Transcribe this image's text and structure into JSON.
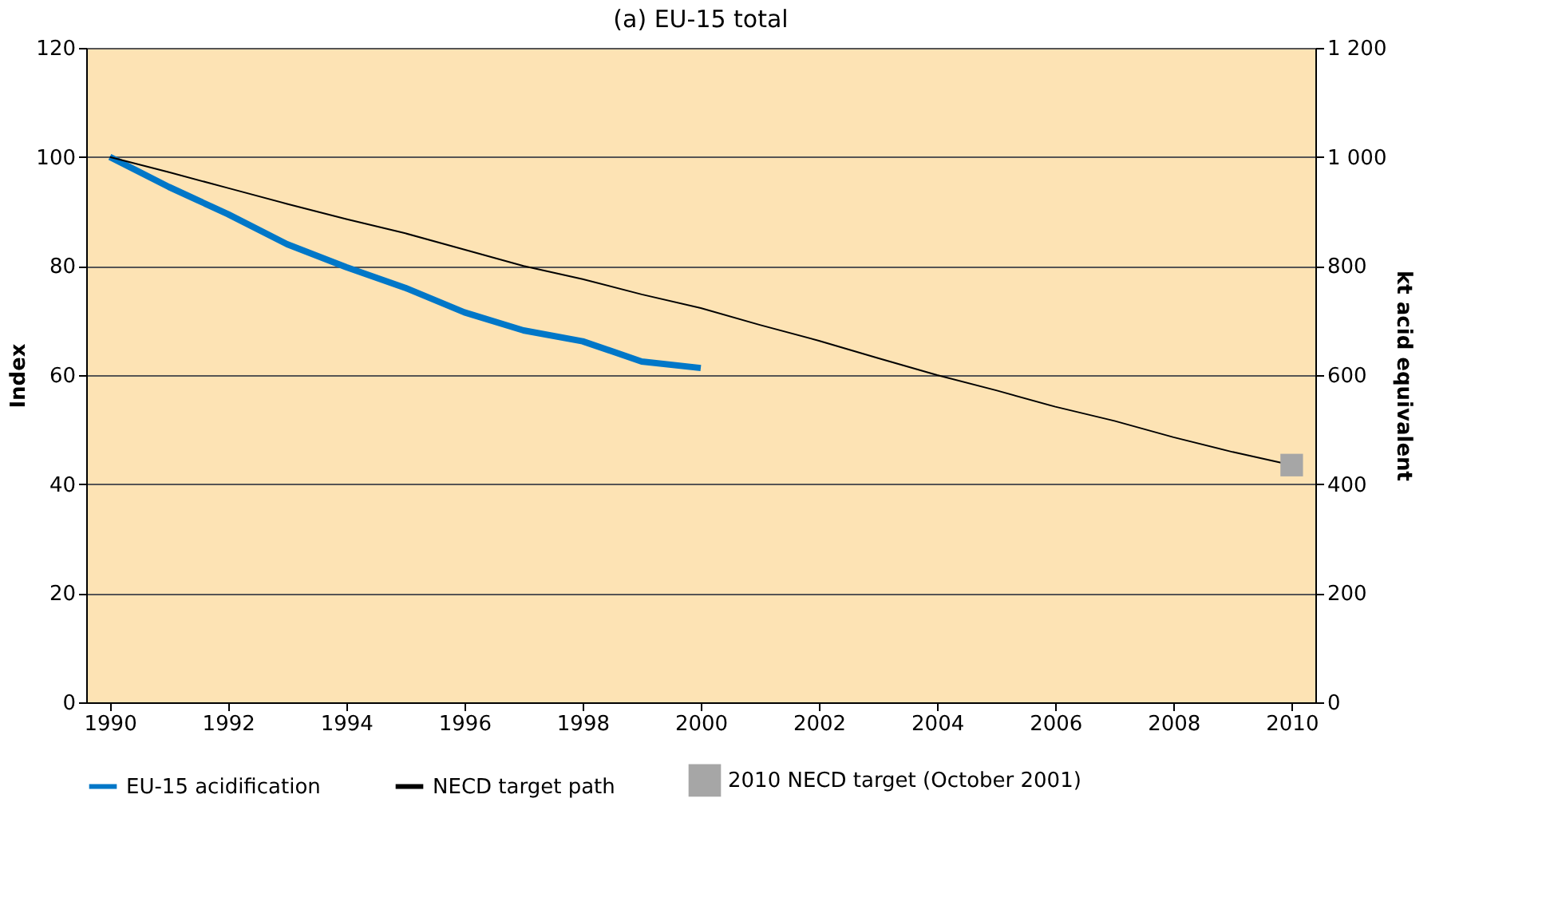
{
  "chart_data": {
    "type": "line",
    "title": "(a) EU-15 total",
    "ylabel": "Index",
    "y2label": "kt acid equivalent",
    "x": [
      1990,
      1991,
      1992,
      1993,
      1994,
      1995,
      1996,
      1997,
      1998,
      1999,
      2000,
      2001,
      2002,
      2003,
      2004,
      2005,
      2006,
      2007,
      2008,
      2009,
      2010
    ],
    "series": [
      {
        "name": "EU-15 acidification",
        "color": "#0077c8",
        "x": [
          1990,
          1991,
          1992,
          1993,
          1994,
          1995,
          1996,
          1997,
          1998,
          1999,
          2000
        ],
        "values": [
          100,
          94.5,
          89.5,
          84,
          79.8,
          76,
          71.5,
          68.2,
          66.2,
          62.5,
          61.3
        ]
      },
      {
        "name": "NECD target path",
        "color": "#000000",
        "values": [
          100,
          97.2,
          94.3,
          91.4,
          88.6,
          86.0,
          83.0,
          80.0,
          77.6,
          74.8,
          72.3,
          69.2,
          66.3,
          63.1,
          60.0,
          57.2,
          54.2,
          51.6,
          48.6,
          45.9,
          43.5
        ]
      },
      {
        "name": "2010 NECD target (October 2001)",
        "type": "scatter",
        "marker": "square",
        "axis": "y2",
        "color": "#a6a6a6",
        "x": [
          2010
        ],
        "values": [
          435
        ]
      }
    ],
    "xlim": [
      1989.6,
      2010.4
    ],
    "xticks": [
      1990,
      1992,
      1994,
      1996,
      1998,
      2000,
      2002,
      2004,
      2006,
      2008,
      2010
    ],
    "ylim": [
      0,
      120
    ],
    "yticks": [
      0,
      20,
      40,
      60,
      80,
      100,
      120
    ],
    "y2lim": [
      0,
      1200
    ],
    "y2ticks": [
      0,
      200,
      400,
      600,
      800,
      {
        "value": 1000,
        "label": "1 000"
      },
      {
        "value": 1200,
        "label": "1 200"
      }
    ],
    "grid": "y",
    "legend": "bottom"
  }
}
